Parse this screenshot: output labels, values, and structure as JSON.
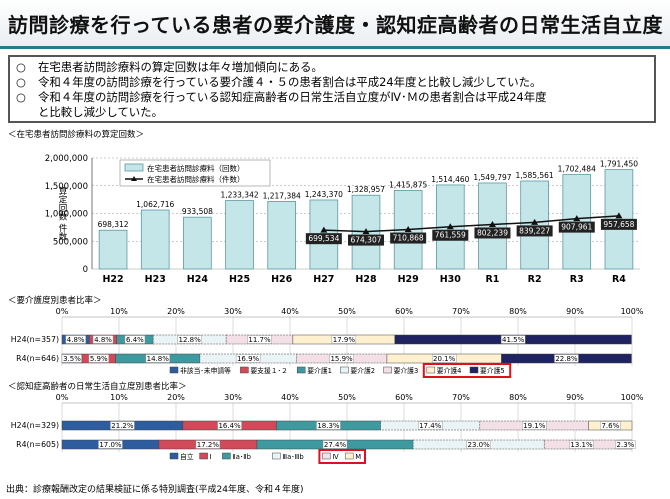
{
  "title": "訪問診療を行っている患者の要介護度・認知症高齢者の日常生活自立度",
  "summary": [
    {
      "marker": "○",
      "text": "在宅患者訪問診療料の算定回数は年々増加傾向にある。"
    },
    {
      "marker": "○",
      "text": "令和４年度の訪問診療を行っている要介護４・５の患者割合は平成24年度と比較し減少していた。"
    },
    {
      "marker": "○",
      "text": "令和４年度の訪問診療を行っている認知症高齢者の日常生活自立度がⅣ･Ｍの患者割合は平成24年度"
    },
    {
      "marker": "",
      "text": "と比較し減少していた。"
    }
  ],
  "section1_title": "＜在宅患者訪問診療料の算定回数＞",
  "section2_title": "＜要介護度別患者比率＞",
  "section3_title": "＜認知症高齢者の日常生活自立度別患者比率＞",
  "source_note": "出典：診療報酬改定の結果検証に係る特別調査(平成24年度、令和４年度)",
  "colors": {
    "bar_fill": "#c5e6e9",
    "bar_stroke": "#5a9aa3",
    "line": "#111111",
    "highlight": "#e0101e",
    "title_border": "#2a7a8c"
  },
  "chart_data": [
    {
      "type": "bar",
      "title": "＜在宅患者訪問診療料の算定回数＞",
      "ylabel": "算定回数 件数",
      "ylim": [
        0,
        2000000
      ],
      "yticks": [
        "0",
        "500,000",
        "1,000,000",
        "1,500,000",
        "2,000,000"
      ],
      "categories": [
        "H22",
        "H23",
        "H24",
        "H25",
        "H26",
        "H27",
        "H28",
        "H29",
        "H30",
        "R1",
        "R2",
        "R3",
        "R4"
      ],
      "series": [
        {
          "name": "在宅患者訪問診療料（回数）",
          "kind": "bar",
          "values": [
            698312,
            1062716,
            933508,
            1233342,
            1217384,
            1243370,
            1328957,
            1415875,
            1514460,
            1549797,
            1585561,
            1702484,
            1791450
          ],
          "labels": [
            "698,312",
            "1,062,716",
            "933,508",
            "1,233,342",
            "1,217,384",
            "1,243,370",
            "1,328,957",
            "1,415,875",
            "1,514,460",
            "1,549,797",
            "1,585,561",
            "1,702,484",
            "1,791,450"
          ]
        },
        {
          "name": "在宅患者訪問診療料（件数）",
          "kind": "line",
          "values": [
            null,
            null,
            null,
            null,
            null,
            699534,
            674307,
            710868,
            761559,
            802239,
            839227,
            907961,
            957658
          ],
          "labels": [
            "",
            "",
            "",
            "",
            "",
            "699,534",
            "674,307",
            "710,868",
            "761,559",
            "802,239",
            "839,227",
            "907,961",
            "957,658"
          ]
        }
      ],
      "grid": true,
      "legend": "top-left"
    },
    {
      "type": "bar",
      "stacked": "horizontal-percent",
      "title": "＜要介護度別患者比率＞",
      "xticks": [
        "0%",
        "10%",
        "20%",
        "30%",
        "40%",
        "50%",
        "60%",
        "70%",
        "80%",
        "90%",
        "100%"
      ],
      "categories": [
        "H24(n=357)",
        "R4(n=646)"
      ],
      "series": [
        {
          "name": "非該当･未申請等",
          "values": [
            4.8,
            3.5
          ],
          "labels": [
            "4.8%",
            "3.5%"
          ]
        },
        {
          "name": "要支援１･２",
          "values": [
            4.8,
            5.9
          ],
          "labels": [
            "4.8%",
            "5.9%"
          ]
        },
        {
          "name": "要介護1",
          "values": [
            6.4,
            14.8
          ],
          "labels": [
            "6.4%",
            "14.8%"
          ]
        },
        {
          "name": "要介護2",
          "values": [
            12.8,
            16.9
          ],
          "labels": [
            "12.8%",
            "16.9%"
          ]
        },
        {
          "name": "要介護3",
          "values": [
            11.7,
            15.9
          ],
          "labels": [
            "11.7%",
            "15.9%"
          ]
        },
        {
          "name": "要介護4",
          "values": [
            17.9,
            20.1
          ],
          "labels": [
            "17.9%",
            "20.1%"
          ]
        },
        {
          "name": "要介護5",
          "values": [
            41.5,
            22.8
          ],
          "labels": [
            "41.5%",
            "22.8%"
          ]
        }
      ],
      "highlight_legend": [
        "要介護4",
        "要介護5"
      ],
      "legend": "bottom"
    },
    {
      "type": "bar",
      "stacked": "horizontal-percent",
      "title": "＜認知症高齢者の日常生活自立度別患者比率＞",
      "xticks": [
        "0%",
        "10%",
        "20%",
        "30%",
        "40%",
        "50%",
        "60%",
        "70%",
        "80%",
        "90%",
        "100%"
      ],
      "categories": [
        "H24(n=329)",
        "R4(n=605)"
      ],
      "series": [
        {
          "name": "自立",
          "values": [
            21.2,
            17.0
          ],
          "labels": [
            "21.2%",
            "17.0%"
          ]
        },
        {
          "name": "Ⅰ",
          "values": [
            16.4,
            17.2
          ],
          "labels": [
            "16.4%",
            "17.2%"
          ]
        },
        {
          "name": "Ⅱa･Ⅱb",
          "values": [
            18.3,
            27.4
          ],
          "labels": [
            "18.3%",
            "27.4%"
          ]
        },
        {
          "name": "Ⅲa･Ⅲb",
          "values": [
            17.4,
            23.0
          ],
          "labels": [
            "17.4%",
            "23.0%"
          ]
        },
        {
          "name": "Ⅳ",
          "values": [
            19.1,
            13.1
          ],
          "labels": [
            "19.1%",
            "13.1%"
          ]
        },
        {
          "name": "M",
          "values": [
            7.6,
            2.3
          ],
          "labels": [
            "7.6%",
            "2.3%"
          ]
        }
      ],
      "highlight_legend": [
        "Ⅳ",
        "M"
      ],
      "legend": "bottom"
    }
  ]
}
